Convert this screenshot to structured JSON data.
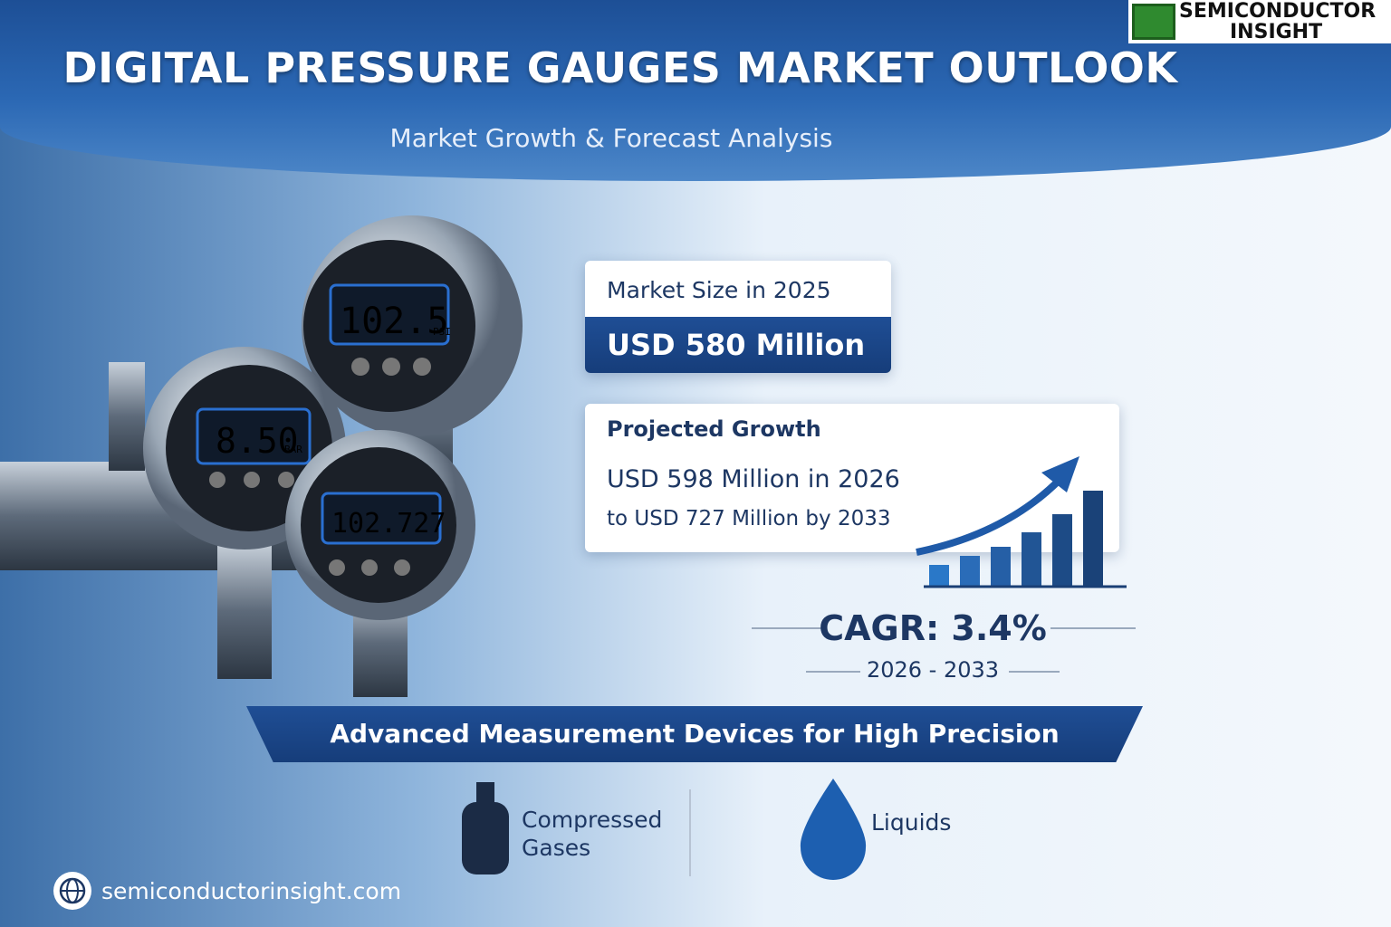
{
  "logo": {
    "line1": "SEMICONDUCTOR",
    "line2": "INSIGHT"
  },
  "header": {
    "title": "DIGITAL PRESSURE GAUGES MARKET OUTLOOK",
    "subtitle": "Market Growth & Forecast Analysis"
  },
  "gauges": [
    {
      "reading": "102.5",
      "unit": "PSI"
    },
    {
      "reading": "8.50",
      "unit": "BAR"
    },
    {
      "reading": "102.727"
    }
  ],
  "market_size": {
    "label": "Market Size in 2025",
    "value": "USD 580 Million"
  },
  "growth": {
    "label": "Projected Growth",
    "line1": "USD 598 Million in 2026",
    "line2": "to USD 727 Million by 2033"
  },
  "cagr": {
    "label": "CAGR: 3.4%",
    "period": "2026 - 2033"
  },
  "banner": "Advanced Measurement Devices for High Precision",
  "applications": [
    "Compressed Gases",
    "Liquids"
  ],
  "footer": "semiconductorinsight.com"
}
